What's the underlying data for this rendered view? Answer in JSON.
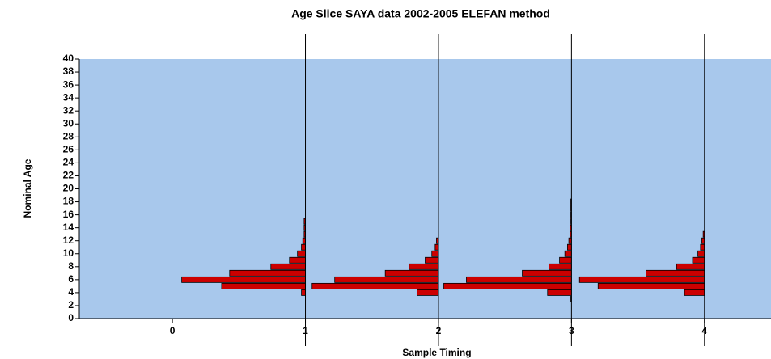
{
  "chart_data": {
    "type": "age-slice",
    "title": "Age Slice SAYA data 2002-2005 ELEFAN method",
    "xlabel": "Sample Timing",
    "ylabel": "Nominal Age",
    "ages": [
      3,
      4,
      5,
      6,
      7,
      8,
      9,
      10,
      11,
      12,
      13,
      14,
      15,
      16,
      17,
      18
    ],
    "series": [
      {
        "x": 1,
        "color": "#cc0000",
        "values": [
          null,
          0.03,
          0.63,
          0.93,
          0.57,
          0.26,
          0.12,
          0.06,
          0.03,
          0.02,
          0.01,
          0.01,
          0.01,
          null,
          null,
          null
        ]
      },
      {
        "x": 2,
        "color": "#cc0000",
        "values": [
          null,
          0.16,
          0.95,
          0.78,
          0.4,
          0.22,
          0.1,
          0.05,
          0.025,
          0.015,
          null,
          null,
          null,
          null,
          null,
          null
        ]
      },
      {
        "x": 3,
        "color": "#cc0000",
        "values": [
          0.005,
          0.18,
          0.96,
          0.79,
          0.37,
          0.17,
          0.09,
          0.05,
          0.03,
          0.02,
          0.01,
          0.01,
          0.005,
          0.005,
          0.005,
          0.005
        ]
      },
      {
        "x": 4,
        "color": "#cc0000",
        "values": [
          null,
          0.15,
          0.8,
          0.94,
          0.44,
          0.21,
          0.09,
          0.05,
          0.03,
          0.02,
          0.01,
          null,
          null,
          null,
          null,
          null
        ]
      }
    ],
    "xlim": [
      -0.7,
      4.5
    ],
    "xticks": [
      0,
      1,
      2,
      3,
      4
    ],
    "ylim": [
      0,
      40
    ],
    "yticks": [
      0,
      2,
      4,
      6,
      8,
      10,
      12,
      14,
      16,
      18,
      20,
      22,
      24,
      26,
      28,
      30,
      32,
      34,
      36,
      38,
      40
    ],
    "plot_background": "#a8c8ec"
  }
}
